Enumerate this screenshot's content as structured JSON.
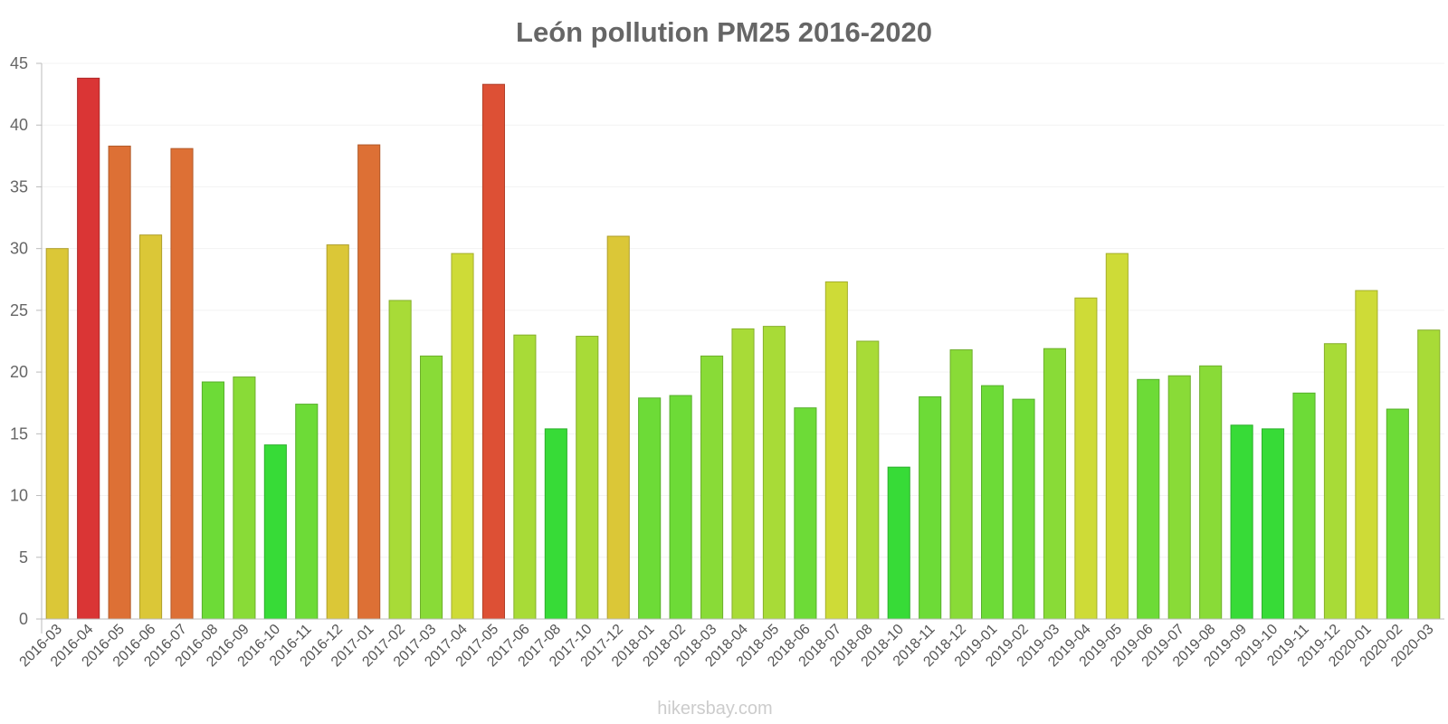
{
  "chart_data": {
    "type": "bar",
    "title": "León pollution PM25 2016-2020",
    "xlabel": "",
    "ylabel": "",
    "ylim": [
      0,
      45
    ],
    "yticks": [
      0,
      5,
      10,
      15,
      20,
      25,
      30,
      35,
      40,
      45
    ],
    "grid": true,
    "categories": [
      "2016-03",
      "2016-04",
      "2016-05",
      "2016-06",
      "2016-07",
      "2016-08",
      "2016-09",
      "2016-10",
      "2016-11",
      "2016-12",
      "2017-01",
      "2017-02",
      "2017-03",
      "2017-04",
      "2017-05",
      "2017-06",
      "2017-08",
      "2017-10",
      "2017-12",
      "2018-01",
      "2018-02",
      "2018-03",
      "2018-04",
      "2018-05",
      "2018-06",
      "2018-07",
      "2018-08",
      "2018-10",
      "2018-11",
      "2018-12",
      "2019-01",
      "2019-02",
      "2019-03",
      "2019-04",
      "2019-05",
      "2019-06",
      "2019-07",
      "2019-08",
      "2019-09",
      "2019-10",
      "2019-11",
      "2019-12",
      "2020-01",
      "2020-02",
      "2020-03"
    ],
    "values": [
      30,
      43.8,
      38.3,
      31.1,
      38.1,
      19.2,
      19.6,
      14.1,
      17.4,
      30.3,
      38.4,
      25.8,
      21.3,
      29.6,
      43.3,
      23,
      15.4,
      22.9,
      31,
      17.9,
      18.1,
      21.3,
      23.5,
      23.7,
      17.1,
      27.3,
      22.5,
      12.3,
      18,
      21.8,
      18.9,
      17.8,
      21.9,
      26,
      29.6,
      19.4,
      19.7,
      20.5,
      15.7,
      15.4,
      18.3,
      22.3,
      26.6,
      17,
      23.4
    ],
    "colors": [
      "#dbc737",
      "#da3535",
      "#dd7035",
      "#dbc737",
      "#dd7035",
      "#6ddb37",
      "#89db37",
      "#37db37",
      "#6ddb37",
      "#dbc737",
      "#dd7035",
      "#a8db37",
      "#89db37",
      "#cedb37",
      "#dd5035",
      "#a8db37",
      "#37db37",
      "#a8db37",
      "#dbc737",
      "#6ddb37",
      "#6ddb37",
      "#89db37",
      "#a8db37",
      "#a8db37",
      "#6ddb37",
      "#cedb37",
      "#a8db37",
      "#37db37",
      "#6ddb37",
      "#89db37",
      "#6ddb37",
      "#6ddb37",
      "#89db37",
      "#cedb37",
      "#cedb37",
      "#6ddb37",
      "#89db37",
      "#89db37",
      "#37db37",
      "#37db37",
      "#6ddb37",
      "#a8db37",
      "#cedb37",
      "#6ddb37",
      "#a8db37"
    ]
  },
  "watermark": "hikersbay.com"
}
